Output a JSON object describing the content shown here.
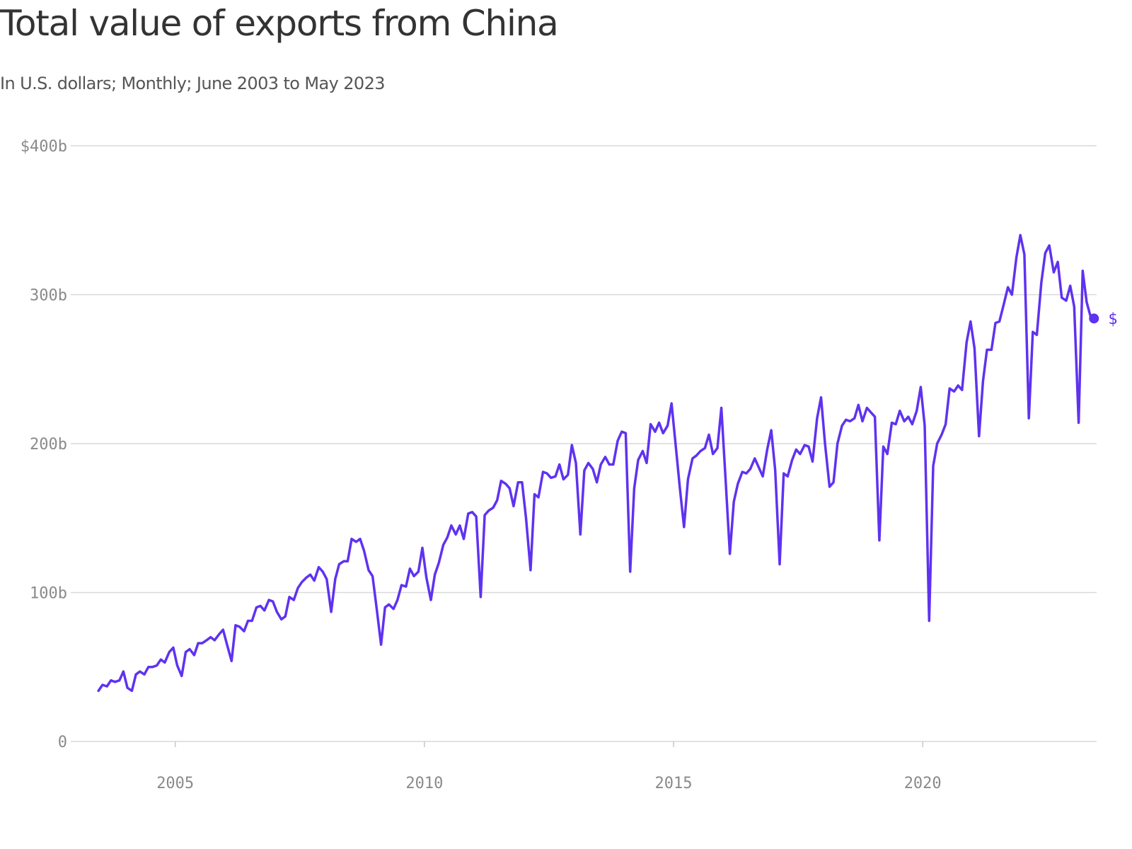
{
  "title": "Total value of exports from China",
  "subtitle": "In U.S. dollars; Monthly; June 2003 to May 2023",
  "colors": {
    "line": "#5f32f0",
    "grid": "#d9d9d9",
    "axis_text": "#8a8a8a",
    "title_text": "#333333",
    "subtitle_text": "#555555"
  },
  "chart_data": {
    "type": "line",
    "title": "Total value of exports from China",
    "subtitle": "In U.S. dollars; Monthly; June 2003 to May 2023",
    "xlabel": "",
    "ylabel": "",
    "x_start": "2003-06",
    "x_end": "2023-05",
    "x_range": [
      2003.4,
      2024.2
    ],
    "ylim": [
      0,
      400
    ],
    "y_unit": "billion US$",
    "grid": true,
    "y_ticks": [
      {
        "value": 0,
        "label": "0"
      },
      {
        "value": 100,
        "label": "100b"
      },
      {
        "value": 200,
        "label": "200b"
      },
      {
        "value": 300,
        "label": "300b"
      },
      {
        "value": 400,
        "label": "$400b"
      }
    ],
    "x_ticks": [
      {
        "value": 2005,
        "label": "2005"
      },
      {
        "value": 2010,
        "label": "2010"
      },
      {
        "value": 2015,
        "label": "2015"
      },
      {
        "value": 2020,
        "label": "2020"
      }
    ],
    "end_label": "$",
    "series": [
      {
        "values": [
          [
            2003.46,
            34
          ],
          [
            2003.54,
            38
          ],
          [
            2003.63,
            37
          ],
          [
            2003.71,
            41
          ],
          [
            2003.79,
            40
          ],
          [
            2003.88,
            41
          ],
          [
            2003.96,
            47
          ],
          [
            2004.04,
            36
          ],
          [
            2004.13,
            34
          ],
          [
            2004.21,
            45
          ],
          [
            2004.29,
            47
          ],
          [
            2004.38,
            45
          ],
          [
            2004.46,
            50
          ],
          [
            2004.54,
            50
          ],
          [
            2004.63,
            51
          ],
          [
            2004.71,
            55
          ],
          [
            2004.79,
            53
          ],
          [
            2004.88,
            60
          ],
          [
            2004.96,
            63
          ],
          [
            2005.04,
            51
          ],
          [
            2005.13,
            44
          ],
          [
            2005.21,
            60
          ],
          [
            2005.29,
            62
          ],
          [
            2005.38,
            58
          ],
          [
            2005.46,
            66
          ],
          [
            2005.54,
            66
          ],
          [
            2005.63,
            68
          ],
          [
            2005.71,
            70
          ],
          [
            2005.79,
            68
          ],
          [
            2005.88,
            72
          ],
          [
            2005.96,
            75
          ],
          [
            2006.04,
            65
          ],
          [
            2006.13,
            54
          ],
          [
            2006.21,
            78
          ],
          [
            2006.29,
            77
          ],
          [
            2006.38,
            74
          ],
          [
            2006.46,
            81
          ],
          [
            2006.54,
            81
          ],
          [
            2006.63,
            90
          ],
          [
            2006.71,
            91
          ],
          [
            2006.79,
            88
          ],
          [
            2006.88,
            95
          ],
          [
            2006.96,
            94
          ],
          [
            2007.04,
            87
          ],
          [
            2007.13,
            82
          ],
          [
            2007.21,
            84
          ],
          [
            2007.29,
            97
          ],
          [
            2007.38,
            95
          ],
          [
            2007.46,
            103
          ],
          [
            2007.54,
            107
          ],
          [
            2007.63,
            110
          ],
          [
            2007.71,
            112
          ],
          [
            2007.79,
            108
          ],
          [
            2007.88,
            117
          ],
          [
            2007.96,
            114
          ],
          [
            2008.04,
            109
          ],
          [
            2008.13,
            87
          ],
          [
            2008.21,
            109
          ],
          [
            2008.29,
            119
          ],
          [
            2008.38,
            121
          ],
          [
            2008.46,
            121
          ],
          [
            2008.54,
            136
          ],
          [
            2008.63,
            134
          ],
          [
            2008.71,
            136
          ],
          [
            2008.79,
            128
          ],
          [
            2008.88,
            115
          ],
          [
            2008.96,
            111
          ],
          [
            2009.04,
            90
          ],
          [
            2009.13,
            65
          ],
          [
            2009.21,
            90
          ],
          [
            2009.29,
            92
          ],
          [
            2009.38,
            89
          ],
          [
            2009.46,
            95
          ],
          [
            2009.54,
            105
          ],
          [
            2009.63,
            104
          ],
          [
            2009.71,
            116
          ],
          [
            2009.79,
            111
          ],
          [
            2009.88,
            114
          ],
          [
            2009.96,
            130
          ],
          [
            2010.04,
            110
          ],
          [
            2010.13,
            95
          ],
          [
            2010.21,
            112
          ],
          [
            2010.29,
            120
          ],
          [
            2010.38,
            132
          ],
          [
            2010.46,
            137
          ],
          [
            2010.54,
            145
          ],
          [
            2010.63,
            139
          ],
          [
            2010.71,
            145
          ],
          [
            2010.79,
            136
          ],
          [
            2010.88,
            153
          ],
          [
            2010.96,
            154
          ],
          [
            2011.04,
            151
          ],
          [
            2011.13,
            97
          ],
          [
            2011.21,
            152
          ],
          [
            2011.29,
            155
          ],
          [
            2011.38,
            157
          ],
          [
            2011.46,
            162
          ],
          [
            2011.54,
            175
          ],
          [
            2011.63,
            173
          ],
          [
            2011.71,
            170
          ],
          [
            2011.79,
            158
          ],
          [
            2011.88,
            174
          ],
          [
            2011.96,
            174
          ],
          [
            2012.04,
            150
          ],
          [
            2012.13,
            115
          ],
          [
            2012.21,
            166
          ],
          [
            2012.29,
            164
          ],
          [
            2012.38,
            181
          ],
          [
            2012.46,
            180
          ],
          [
            2012.54,
            177
          ],
          [
            2012.63,
            178
          ],
          [
            2012.71,
            186
          ],
          [
            2012.79,
            176
          ],
          [
            2012.88,
            179
          ],
          [
            2012.96,
            199
          ],
          [
            2013.04,
            187
          ],
          [
            2013.13,
            139
          ],
          [
            2013.21,
            182
          ],
          [
            2013.29,
            187
          ],
          [
            2013.38,
            183
          ],
          [
            2013.46,
            174
          ],
          [
            2013.54,
            186
          ],
          [
            2013.63,
            191
          ],
          [
            2013.71,
            186
          ],
          [
            2013.79,
            186
          ],
          [
            2013.88,
            202
          ],
          [
            2013.96,
            208
          ],
          [
            2014.04,
            207
          ],
          [
            2014.13,
            114
          ],
          [
            2014.21,
            170
          ],
          [
            2014.29,
            189
          ],
          [
            2014.38,
            195
          ],
          [
            2014.46,
            187
          ],
          [
            2014.54,
            213
          ],
          [
            2014.63,
            208
          ],
          [
            2014.71,
            214
          ],
          [
            2014.79,
            207
          ],
          [
            2014.88,
            212
          ],
          [
            2014.96,
            227
          ],
          [
            2015.04,
            200
          ],
          [
            2015.13,
            169
          ],
          [
            2015.21,
            144
          ],
          [
            2015.29,
            176
          ],
          [
            2015.38,
            190
          ],
          [
            2015.46,
            192
          ],
          [
            2015.54,
            195
          ],
          [
            2015.63,
            197
          ],
          [
            2015.71,
            206
          ],
          [
            2015.79,
            193
          ],
          [
            2015.88,
            197
          ],
          [
            2015.96,
            224
          ],
          [
            2016.04,
            178
          ],
          [
            2016.13,
            126
          ],
          [
            2016.21,
            161
          ],
          [
            2016.29,
            173
          ],
          [
            2016.38,
            181
          ],
          [
            2016.46,
            180
          ],
          [
            2016.54,
            183
          ],
          [
            2016.63,
            190
          ],
          [
            2016.71,
            184
          ],
          [
            2016.79,
            178
          ],
          [
            2016.88,
            196
          ],
          [
            2016.96,
            209
          ],
          [
            2017.04,
            182
          ],
          [
            2017.13,
            119
          ],
          [
            2017.21,
            180
          ],
          [
            2017.29,
            178
          ],
          [
            2017.38,
            189
          ],
          [
            2017.46,
            196
          ],
          [
            2017.54,
            193
          ],
          [
            2017.63,
            199
          ],
          [
            2017.71,
            198
          ],
          [
            2017.79,
            188
          ],
          [
            2017.88,
            217
          ],
          [
            2017.96,
            231
          ],
          [
            2018.04,
            200
          ],
          [
            2018.13,
            171
          ],
          [
            2018.21,
            174
          ],
          [
            2018.29,
            200
          ],
          [
            2018.38,
            212
          ],
          [
            2018.46,
            216
          ],
          [
            2018.54,
            215
          ],
          [
            2018.63,
            217
          ],
          [
            2018.71,
            226
          ],
          [
            2018.79,
            215
          ],
          [
            2018.88,
            224
          ],
          [
            2018.96,
            221
          ],
          [
            2019.04,
            218
          ],
          [
            2019.13,
            135
          ],
          [
            2019.21,
            198
          ],
          [
            2019.29,
            193
          ],
          [
            2019.38,
            214
          ],
          [
            2019.46,
            213
          ],
          [
            2019.54,
            222
          ],
          [
            2019.63,
            215
          ],
          [
            2019.71,
            218
          ],
          [
            2019.79,
            213
          ],
          [
            2019.88,
            222
          ],
          [
            2019.96,
            238
          ],
          [
            2020.04,
            212
          ],
          [
            2020.13,
            81
          ],
          [
            2020.21,
            185
          ],
          [
            2020.29,
            200
          ],
          [
            2020.38,
            206
          ],
          [
            2020.46,
            213
          ],
          [
            2020.54,
            237
          ],
          [
            2020.63,
            235
          ],
          [
            2020.71,
            239
          ],
          [
            2020.79,
            236
          ],
          [
            2020.88,
            268
          ],
          [
            2020.96,
            282
          ],
          [
            2021.04,
            264
          ],
          [
            2021.13,
            205
          ],
          [
            2021.21,
            242
          ],
          [
            2021.29,
            263
          ],
          [
            2021.38,
            263
          ],
          [
            2021.46,
            281
          ],
          [
            2021.54,
            282
          ],
          [
            2021.63,
            294
          ],
          [
            2021.71,
            305
          ],
          [
            2021.79,
            300
          ],
          [
            2021.88,
            325
          ],
          [
            2021.96,
            340
          ],
          [
            2022.04,
            327
          ],
          [
            2022.13,
            217
          ],
          [
            2022.21,
            275
          ],
          [
            2022.29,
            273
          ],
          [
            2022.38,
            308
          ],
          [
            2022.46,
            328
          ],
          [
            2022.54,
            333
          ],
          [
            2022.63,
            315
          ],
          [
            2022.71,
            322
          ],
          [
            2022.79,
            298
          ],
          [
            2022.88,
            296
          ],
          [
            2022.96,
            306
          ],
          [
            2023.04,
            292
          ],
          [
            2023.13,
            214
          ],
          [
            2023.21,
            316
          ],
          [
            2023.29,
            295
          ],
          [
            2023.38,
            284
          ]
        ]
      }
    ]
  }
}
